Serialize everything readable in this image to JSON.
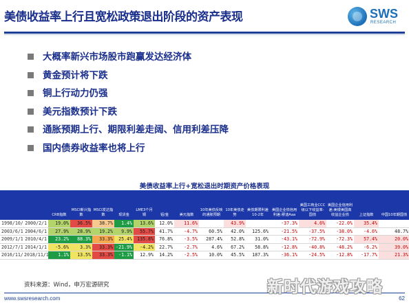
{
  "slide": {
    "title": "美债收益率上行且宽松政策退出阶段的资产表现",
    "page_number": "62"
  },
  "logo": {
    "text": "SWS",
    "subtext": "RESEARCH"
  },
  "bullets": [
    "大概率新兴市场股市跑赢发达经济体",
    "黄金预计将下跌",
    "铜上行动力仍强",
    "美元指数预计下跌",
    "通胀预期上行、期限利差走阔、信用利差压降",
    "国内债券收益率也将上行"
  ],
  "table": {
    "title": "美债收益率上行+宽松退出时期资产价格表现",
    "headers": [
      "",
      "",
      "CRB指数",
      "MSCI新兴指数",
      "MSCI发达指数",
      "现货金",
      "LME3个月铜",
      "铝/金",
      "美元指数",
      "10年美债反映的通胀预期",
      "10年美债走势",
      "美债期限利差10-2年",
      "美国企业债信用利差:穆迪Aaa",
      "美国工商业CCC级以下收益率-国债",
      "美国企业信用利差:美银美国高收益企业债",
      "上证指数",
      "中国10年期国债"
    ],
    "rows": [
      [
        "1998/10/1",
        "2000/2/1",
        "19.0%",
        "36.5%",
        "38.7%",
        "1.4%",
        "13.6%",
        "12.0%",
        "11.6%",
        "",
        "43.9%",
        "",
        "-37.3%",
        "4.6%",
        "-22.0%",
        "35.4%",
        ""
      ],
      [
        "2003/6/1",
        "2004/6/1",
        "27.9%",
        "28.9%",
        "19.2%",
        "9.9%",
        "55.7%",
        "41.7%",
        "-4.7%",
        "60.5%",
        "42.0%",
        "125.6%",
        "-21.5%",
        "-37.5%",
        "-38.0%",
        "-4.6%",
        "48.7%"
      ],
      [
        "2009/1/1",
        "2010/4/1",
        "23.2%",
        "88.3%",
        "33.3%",
        "25.4%",
        "135.8%",
        "76.8%",
        "-3.5%",
        "287.4%",
        "52.8%",
        "31.0%",
        "-43.1%",
        "-72.9%",
        "-72.3%",
        "57.4%",
        "20.0%"
      ],
      [
        "2012/7/1",
        "2014/1/1",
        "-5.6%",
        "3.3%",
        "33.3%",
        "-21.9%",
        "-4.2%",
        "22.7%",
        "-2.7%",
        "4.6%",
        "67.2%",
        "58.8%",
        "-12.8%",
        "-40.8%",
        "-48.2%",
        "-6.2%",
        "39.0%"
      ],
      [
        "2016/11/1",
        "2018/11/1",
        "1.1%",
        "13.5%",
        "33.3%",
        "-1.1%",
        "12.9%",
        "14.2%",
        "-2.5%",
        "10.0%",
        "45.5%",
        "187.3%",
        "-36.1%",
        "-24.5%",
        "-12.8%",
        "-17.7%",
        "21.3%"
      ]
    ]
  },
  "footer": {
    "source": "资料来源：Wind，申万宏源研究",
    "url": "www.swsresearch.com"
  },
  "watermark": "新时代游戏攻略",
  "colors": {
    "title": "#1a2f8c",
    "header_bg": "#1b37a8",
    "negative": "#c00000"
  }
}
